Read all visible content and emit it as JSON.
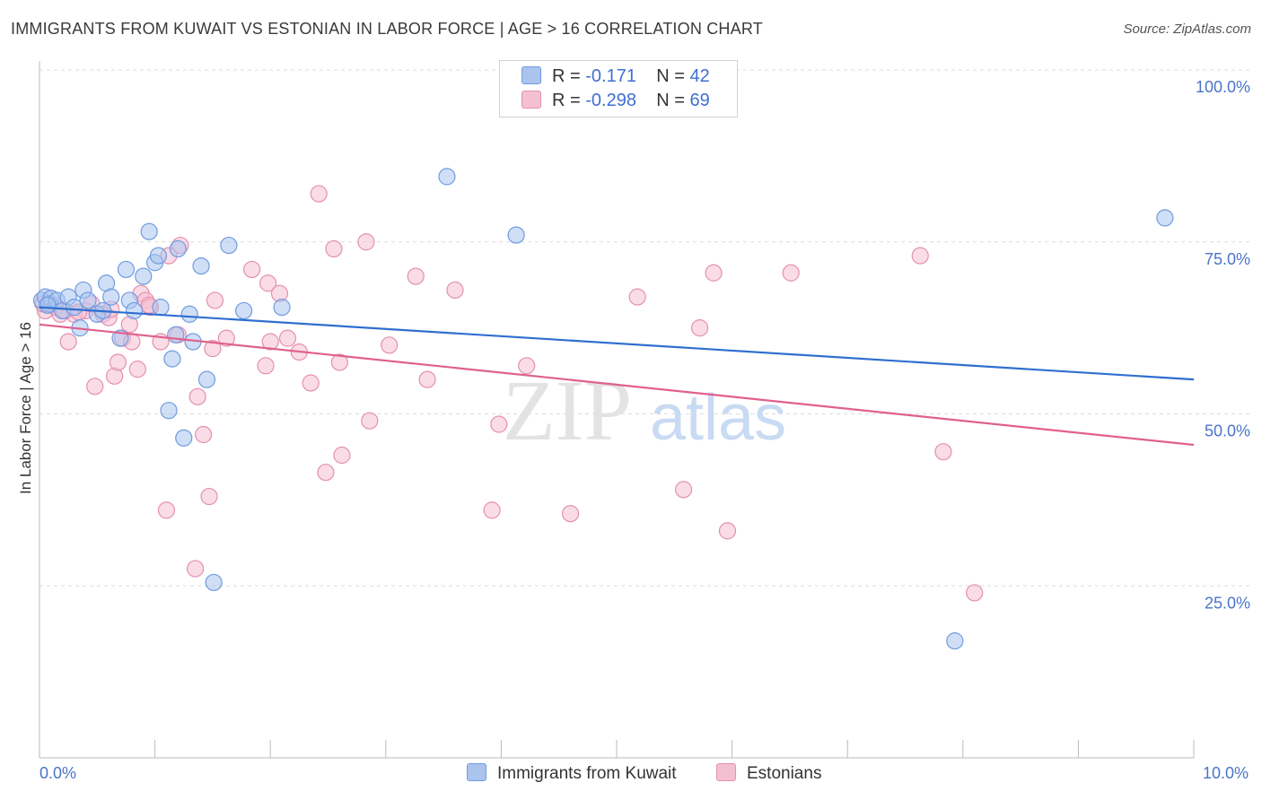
{
  "title": "IMMIGRANTS FROM KUWAIT VS ESTONIAN IN LABOR FORCE | AGE > 16 CORRELATION CHART",
  "source": "Source: ZipAtlas.com",
  "watermark": {
    "zip": "ZIP",
    "atlas": "atlas"
  },
  "legend_top": [
    {
      "r_label": "R =",
      "r_value": "-0.171",
      "n_label": "N =",
      "n_value": "42"
    },
    {
      "r_label": "R =",
      "r_value": "-0.298",
      "n_label": "N =",
      "n_value": "69"
    }
  ],
  "x_min_label": "0.0%",
  "x_max_label": "10.0%",
  "colors": {
    "blue_fill": "#aac4ee",
    "blue_stroke": "#6f9be0",
    "blue_line": "#2f6fd0",
    "pink_fill": "#f5bfd2",
    "pink_stroke": "#e58fb0",
    "pink_line": "#e0608c",
    "grid": "#dcdcdc",
    "tick_text": "#4a74c9"
  },
  "chart_data": {
    "type": "scatter",
    "title": "IMMIGRANTS FROM KUWAIT VS ESTONIAN IN LABOR FORCE | AGE > 16 CORRELATION CHART",
    "xlabel": "",
    "ylabel": "In Labor Force | Age > 16",
    "xlim": [
      0,
      10
    ],
    "ylim": [
      0,
      100
    ],
    "y_ticks": [
      25,
      50,
      75,
      100
    ],
    "y_tick_labels": [
      "25.0%",
      "50.0%",
      "75.0%",
      "100.0%"
    ],
    "grid": true,
    "legend": "bottom-center",
    "series": [
      {
        "name": "Immigrants from Kuwait",
        "r": -0.171,
        "n": 42,
        "trend": {
          "x0": 0,
          "y0": 65.5,
          "x1": 10,
          "y1": 55.0
        },
        "points": [
          [
            0.02,
            66.5
          ],
          [
            0.05,
            67.0
          ],
          [
            0.08,
            66.0
          ],
          [
            0.1,
            66.8
          ],
          [
            0.15,
            66.5
          ],
          [
            0.2,
            65.0
          ],
          [
            0.25,
            67.0
          ],
          [
            0.3,
            65.5
          ],
          [
            0.35,
            62.5
          ],
          [
            0.38,
            68.0
          ],
          [
            0.42,
            66.5
          ],
          [
            0.5,
            64.5
          ],
          [
            0.55,
            65.0
          ],
          [
            0.58,
            69.0
          ],
          [
            0.62,
            67.0
          ],
          [
            0.7,
            61.0
          ],
          [
            0.75,
            71.0
          ],
          [
            0.78,
            66.5
          ],
          [
            0.82,
            65.0
          ],
          [
            0.9,
            70.0
          ],
          [
            0.95,
            76.5
          ],
          [
            1.0,
            72.0
          ],
          [
            1.03,
            73.0
          ],
          [
            1.05,
            65.5
          ],
          [
            1.12,
            50.5
          ],
          [
            1.15,
            58.0
          ],
          [
            1.18,
            61.5
          ],
          [
            1.2,
            74.0
          ],
          [
            1.25,
            46.5
          ],
          [
            1.3,
            64.5
          ],
          [
            1.33,
            60.5
          ],
          [
            1.4,
            71.5
          ],
          [
            1.45,
            55.0
          ],
          [
            1.51,
            25.5
          ],
          [
            1.64,
            74.5
          ],
          [
            1.77,
            65.0
          ],
          [
            2.1,
            65.5
          ],
          [
            3.53,
            84.5
          ],
          [
            4.13,
            76.0
          ],
          [
            7.93,
            17.0
          ],
          [
            9.75,
            78.5
          ],
          [
            0.07,
            65.8
          ]
        ]
      },
      {
        "name": "Estonians",
        "r": -0.298,
        "n": 69,
        "trend": {
          "x0": 0,
          "y0": 63.0,
          "x1": 10,
          "y1": 45.5
        },
        "points": [
          [
            0.05,
            65.0
          ],
          [
            0.1,
            66.0
          ],
          [
            0.14,
            65.5
          ],
          [
            0.18,
            64.5
          ],
          [
            0.25,
            60.5
          ],
          [
            0.3,
            64.5
          ],
          [
            0.4,
            65.0
          ],
          [
            0.45,
            66.0
          ],
          [
            0.48,
            54.0
          ],
          [
            0.55,
            64.5
          ],
          [
            0.6,
            64.0
          ],
          [
            0.65,
            55.5
          ],
          [
            0.68,
            57.5
          ],
          [
            0.72,
            61.0
          ],
          [
            0.78,
            63.0
          ],
          [
            0.8,
            60.5
          ],
          [
            0.85,
            56.5
          ],
          [
            0.88,
            67.5
          ],
          [
            0.92,
            66.5
          ],
          [
            0.96,
            65.5
          ],
          [
            1.05,
            60.5
          ],
          [
            1.1,
            36.0
          ],
          [
            1.12,
            73.0
          ],
          [
            1.2,
            61.5
          ],
          [
            1.22,
            74.5
          ],
          [
            1.35,
            27.5
          ],
          [
            1.37,
            52.5
          ],
          [
            1.42,
            47.0
          ],
          [
            1.47,
            38.0
          ],
          [
            1.5,
            59.5
          ],
          [
            1.52,
            66.5
          ],
          [
            1.62,
            61.0
          ],
          [
            1.84,
            71.0
          ],
          [
            1.96,
            57.0
          ],
          [
            1.98,
            69.0
          ],
          [
            2.0,
            60.5
          ],
          [
            2.08,
            67.5
          ],
          [
            2.15,
            61.0
          ],
          [
            2.25,
            59.0
          ],
          [
            2.35,
            54.5
          ],
          [
            2.42,
            82.0
          ],
          [
            2.48,
            41.5
          ],
          [
            2.55,
            74.0
          ],
          [
            2.6,
            57.5
          ],
          [
            2.62,
            44.0
          ],
          [
            2.83,
            75.0
          ],
          [
            2.86,
            49.0
          ],
          [
            3.03,
            60.0
          ],
          [
            3.26,
            70.0
          ],
          [
            3.36,
            55.0
          ],
          [
            3.6,
            68.0
          ],
          [
            3.92,
            36.0
          ],
          [
            3.98,
            48.5
          ],
          [
            4.22,
            57.0
          ],
          [
            4.6,
            35.5
          ],
          [
            5.18,
            67.0
          ],
          [
            5.58,
            39.0
          ],
          [
            5.72,
            62.5
          ],
          [
            5.84,
            70.5
          ],
          [
            5.96,
            33.0
          ],
          [
            6.51,
            70.5
          ],
          [
            7.63,
            73.0
          ],
          [
            7.83,
            44.5
          ],
          [
            8.1,
            24.0
          ],
          [
            0.03,
            66.0
          ],
          [
            0.22,
            65.0
          ],
          [
            0.34,
            64.8
          ],
          [
            0.62,
            65.2
          ],
          [
            0.95,
            65.8
          ]
        ]
      }
    ]
  }
}
